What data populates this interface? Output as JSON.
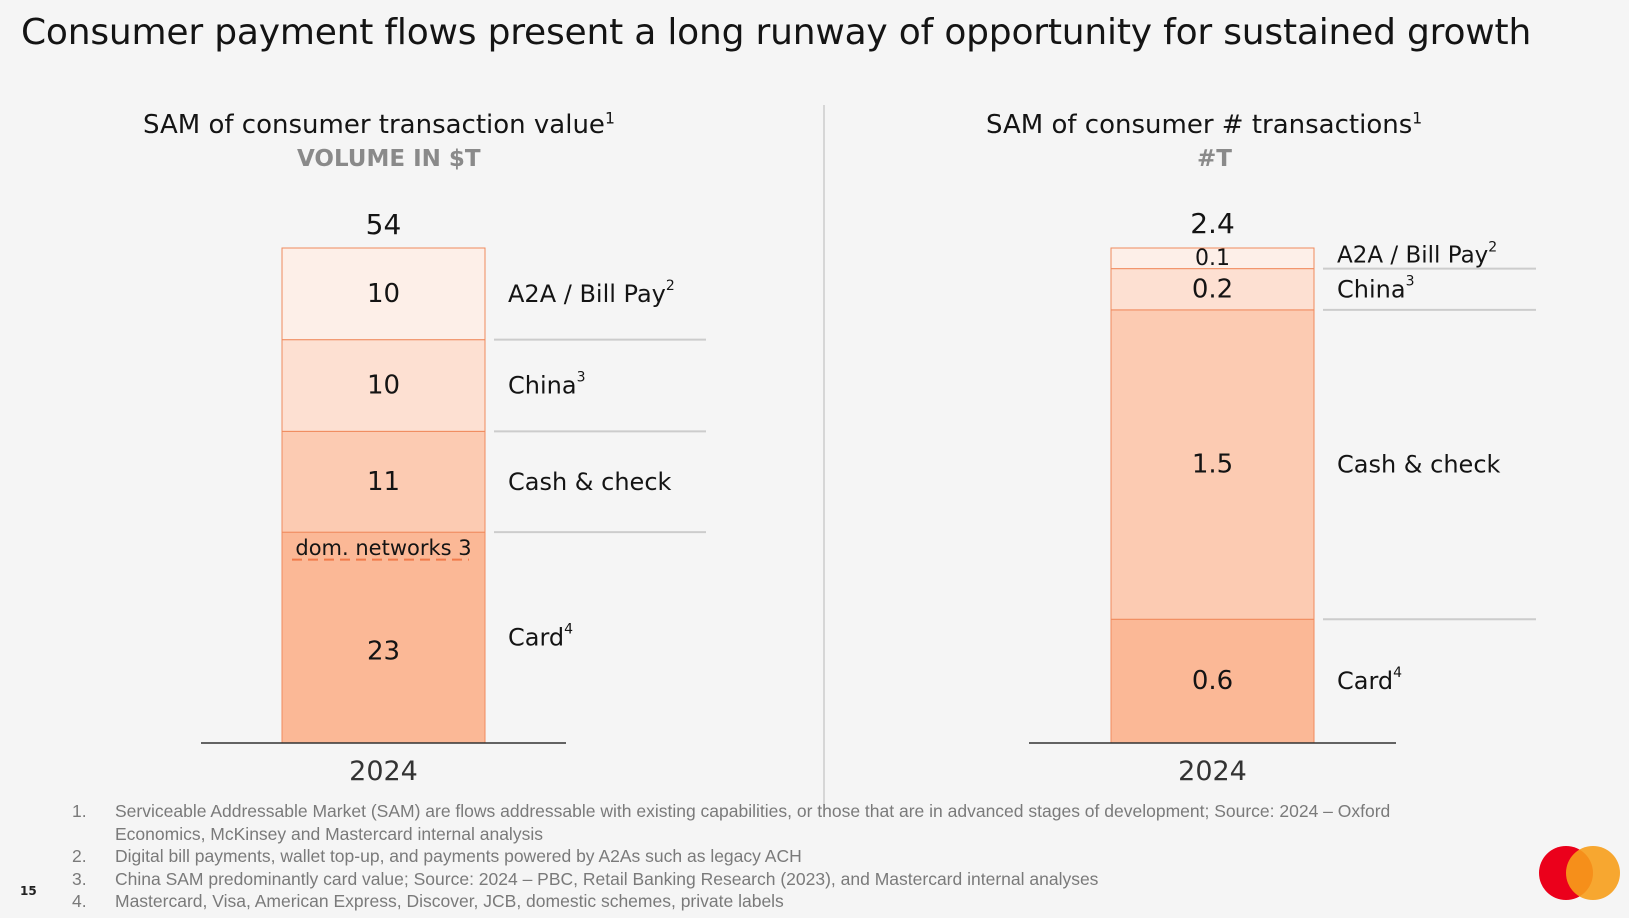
{
  "title": "Consumer payment flows present a long runway of opportunity for sustained growth",
  "chart_data": [
    {
      "type": "bar",
      "stacked": true,
      "title": "SAM of consumer transaction value",
      "title_sup": "1",
      "subtitle": "VOLUME IN $T",
      "categories": [
        "2024"
      ],
      "total": "54",
      "ylim": [
        0,
        54
      ],
      "series": [
        {
          "name": "Card",
          "sup": "4",
          "value": 23,
          "label": "23",
          "color": "#fbb896"
        },
        {
          "name": "Cash & check",
          "sup": "",
          "value": 11,
          "label": "11",
          "color": "#fccbb2"
        },
        {
          "name": "China",
          "sup": "3",
          "value": 10,
          "label": "10",
          "color": "#fde0d2"
        },
        {
          "name": "A2A / Bill Pay",
          "sup": "2",
          "value": 10,
          "label": "10",
          "color": "#fdefe8"
        }
      ],
      "annotation": {
        "text": "dom. networks 3",
        "value": 3,
        "within": "Card"
      }
    },
    {
      "type": "bar",
      "stacked": true,
      "title": "SAM of consumer # transactions",
      "title_sup": "1",
      "subtitle": "#T",
      "categories": [
        "2024"
      ],
      "total": "2.4",
      "ylim": [
        0,
        2.4
      ],
      "series": [
        {
          "name": "Card",
          "sup": "4",
          "value": 0.6,
          "label": "0.6",
          "color": "#fbb896"
        },
        {
          "name": "Cash & check",
          "sup": "",
          "value": 1.5,
          "label": "1.5",
          "color": "#fccbb2"
        },
        {
          "name": "China",
          "sup": "3",
          "value": 0.2,
          "label": "0.2",
          "color": "#fde0d2"
        },
        {
          "name": "A2A / Bill Pay",
          "sup": "2",
          "value": 0.1,
          "label": "0.1",
          "color": "#fdefe8"
        }
      ]
    }
  ],
  "colors": {
    "bar_border": "#f08a5d",
    "dashed_line": "#f07a4a",
    "label_rule": "#cccccc",
    "axis": "#333333"
  },
  "footnotes": [
    {
      "num": "1.",
      "text": "Serviceable Addressable Market (SAM) are flows addressable with existing capabilities, or those that are in advanced stages of development; Source: 2024 – Oxford Economics, McKinsey and Mastercard internal analysis"
    },
    {
      "num": "2.",
      "text": "Digital bill payments, wallet top-up, and payments powered by A2As such as legacy ACH"
    },
    {
      "num": "3.",
      "text": "China SAM predominantly card value; Source: 2024 – PBC, Retail Banking Research (2023), and Mastercard internal analyses"
    },
    {
      "num": "4.",
      "text": "Mastercard, Visa, American Express, Discover, JCB, domestic schemes, private labels"
    }
  ],
  "page_number": "15",
  "logo": {
    "name": "mastercard-logo",
    "colors": [
      "#eb001b",
      "#f79e1b"
    ]
  }
}
